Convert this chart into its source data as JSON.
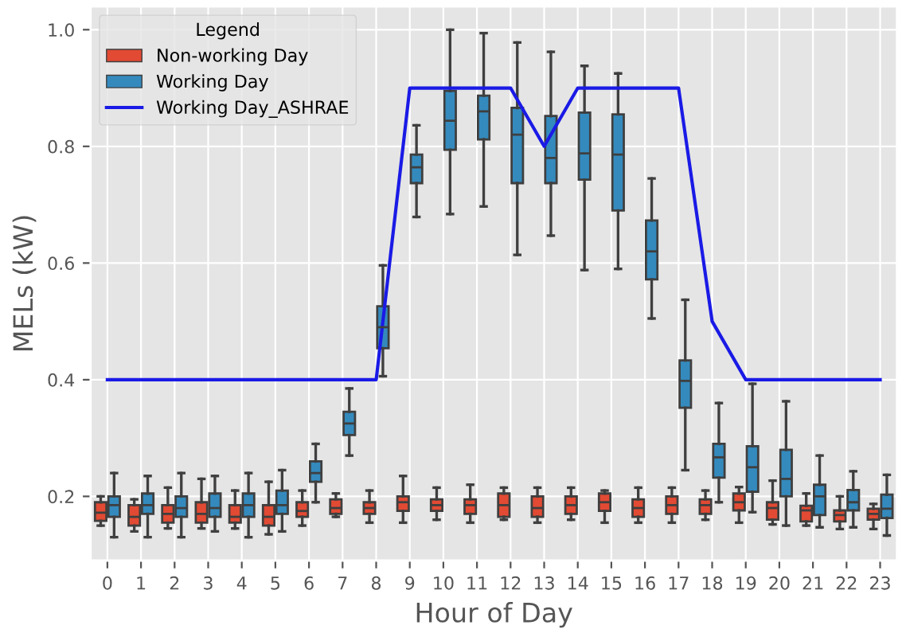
{
  "chart_data": {
    "type": "box",
    "xlabel": "Hour of Day",
    "ylabel": "MELs (kW)",
    "legend_title": "Legend",
    "legend": "top left",
    "grid": true,
    "marker": "none",
    "line_style": "solid",
    "categories": [
      "0",
      "1",
      "2",
      "3",
      "4",
      "5",
      "6",
      "7",
      "8",
      "9",
      "10",
      "11",
      "12",
      "13",
      "14",
      "15",
      "16",
      "17",
      "18",
      "19",
      "20",
      "21",
      "22",
      "23"
    ],
    "ylim": [
      0.09,
      1.04
    ],
    "yticks": [
      0.2,
      0.4,
      0.6,
      0.8,
      {
        "value": 1.0,
        "label": "1.0"
      }
    ],
    "series": [
      {
        "name": "Non-working Day",
        "color": "#e24a33",
        "boxes": [
          {
            "low": 0.15,
            "q1": 0.158,
            "median": 0.172,
            "q3": 0.19,
            "high": 0.2
          },
          {
            "low": 0.14,
            "q1": 0.15,
            "median": 0.165,
            "q3": 0.185,
            "high": 0.195
          },
          {
            "low": 0.145,
            "q1": 0.155,
            "median": 0.17,
            "q3": 0.185,
            "high": 0.215
          },
          {
            "low": 0.145,
            "q1": 0.155,
            "median": 0.17,
            "q3": 0.19,
            "high": 0.23
          },
          {
            "low": 0.145,
            "q1": 0.155,
            "median": 0.165,
            "q3": 0.185,
            "high": 0.21
          },
          {
            "low": 0.135,
            "q1": 0.15,
            "median": 0.165,
            "q3": 0.185,
            "high": 0.225
          },
          {
            "low": 0.15,
            "q1": 0.165,
            "median": 0.175,
            "q3": 0.19,
            "high": 0.21
          },
          {
            "low": 0.165,
            "q1": 0.17,
            "median": 0.18,
            "q3": 0.195,
            "high": 0.205
          },
          {
            "low": 0.155,
            "q1": 0.17,
            "median": 0.18,
            "q3": 0.19,
            "high": 0.21
          },
          {
            "low": 0.155,
            "q1": 0.175,
            "median": 0.19,
            "q3": 0.2,
            "high": 0.235
          },
          {
            "low": 0.16,
            "q1": 0.175,
            "median": 0.185,
            "q3": 0.195,
            "high": 0.215
          },
          {
            "low": 0.155,
            "q1": 0.17,
            "median": 0.185,
            "q3": 0.195,
            "high": 0.22
          },
          {
            "low": 0.16,
            "q1": 0.165,
            "median": 0.185,
            "q3": 0.205,
            "high": 0.215
          },
          {
            "low": 0.155,
            "q1": 0.165,
            "median": 0.18,
            "q3": 0.2,
            "high": 0.215
          },
          {
            "low": 0.16,
            "q1": 0.17,
            "median": 0.185,
            "q3": 0.2,
            "high": 0.215
          },
          {
            "low": 0.155,
            "q1": 0.175,
            "median": 0.19,
            "q3": 0.205,
            "high": 0.21
          },
          {
            "low": 0.155,
            "q1": 0.165,
            "median": 0.18,
            "q3": 0.195,
            "high": 0.215
          },
          {
            "low": 0.155,
            "q1": 0.17,
            "median": 0.185,
            "q3": 0.2,
            "high": 0.215
          },
          {
            "low": 0.16,
            "q1": 0.17,
            "median": 0.185,
            "q3": 0.195,
            "high": 0.21
          },
          {
            "low": 0.155,
            "q1": 0.176,
            "median": 0.19,
            "q3": 0.205,
            "high": 0.216
          },
          {
            "low": 0.152,
            "q1": 0.16,
            "median": 0.18,
            "q3": 0.19,
            "high": 0.227
          },
          {
            "low": 0.15,
            "q1": 0.157,
            "median": 0.176,
            "q3": 0.184,
            "high": 0.205
          },
          {
            "low": 0.144,
            "q1": 0.157,
            "median": 0.168,
            "q3": 0.176,
            "high": 0.2
          },
          {
            "low": 0.144,
            "q1": 0.16,
            "median": 0.17,
            "q3": 0.179,
            "high": 0.187
          }
        ]
      },
      {
        "name": "Working Day",
        "color": "#348abd",
        "boxes": [
          {
            "low": 0.13,
            "q1": 0.165,
            "median": 0.185,
            "q3": 0.2,
            "high": 0.24
          },
          {
            "low": 0.13,
            "q1": 0.17,
            "median": 0.185,
            "q3": 0.205,
            "high": 0.235
          },
          {
            "low": 0.13,
            "q1": 0.165,
            "median": 0.18,
            "q3": 0.2,
            "high": 0.24
          },
          {
            "low": 0.14,
            "q1": 0.165,
            "median": 0.18,
            "q3": 0.205,
            "high": 0.235
          },
          {
            "low": 0.13,
            "q1": 0.165,
            "median": 0.185,
            "q3": 0.205,
            "high": 0.24
          },
          {
            "low": 0.14,
            "q1": 0.17,
            "median": 0.185,
            "q3": 0.21,
            "high": 0.245
          },
          {
            "low": 0.19,
            "q1": 0.225,
            "median": 0.24,
            "q3": 0.26,
            "high": 0.29
          },
          {
            "low": 0.27,
            "q1": 0.305,
            "median": 0.325,
            "q3": 0.345,
            "high": 0.385
          },
          {
            "low": 0.406,
            "q1": 0.454,
            "median": 0.49,
            "q3": 0.526,
            "high": 0.596
          },
          {
            "low": 0.679,
            "q1": 0.737,
            "median": 0.764,
            "q3": 0.786,
            "high": 0.836
          },
          {
            "low": 0.684,
            "q1": 0.794,
            "median": 0.844,
            "q3": 0.895,
            "high": 1.0
          },
          {
            "low": 0.697,
            "q1": 0.812,
            "median": 0.86,
            "q3": 0.887,
            "high": 0.994
          },
          {
            "low": 0.614,
            "q1": 0.737,
            "median": 0.82,
            "q3": 0.866,
            "high": 0.978
          },
          {
            "low": 0.647,
            "q1": 0.737,
            "median": 0.78,
            "q3": 0.852,
            "high": 0.962
          },
          {
            "low": 0.588,
            "q1": 0.743,
            "median": 0.788,
            "q3": 0.858,
            "high": 0.938
          },
          {
            "low": 0.59,
            "q1": 0.69,
            "median": 0.786,
            "q3": 0.855,
            "high": 0.925
          },
          {
            "low": 0.505,
            "q1": 0.572,
            "median": 0.62,
            "q3": 0.673,
            "high": 0.745
          },
          {
            "low": 0.245,
            "q1": 0.352,
            "median": 0.398,
            "q3": 0.433,
            "high": 0.537
          },
          {
            "low": 0.19,
            "q1": 0.232,
            "median": 0.267,
            "q3": 0.29,
            "high": 0.36
          },
          {
            "low": 0.173,
            "q1": 0.208,
            "median": 0.25,
            "q3": 0.286,
            "high": 0.393
          },
          {
            "low": 0.15,
            "q1": 0.2,
            "median": 0.23,
            "q3": 0.28,
            "high": 0.363
          },
          {
            "low": 0.147,
            "q1": 0.168,
            "median": 0.2,
            "q3": 0.22,
            "high": 0.27
          },
          {
            "low": 0.147,
            "q1": 0.176,
            "median": 0.19,
            "q3": 0.211,
            "high": 0.243
          },
          {
            "low": 0.133,
            "q1": 0.163,
            "median": 0.179,
            "q3": 0.203,
            "high": 0.237
          }
        ]
      },
      {
        "name": "Working Day_ASHRAE",
        "type": "line",
        "color": "#1a1ae6",
        "values": [
          0.4,
          0.4,
          0.4,
          0.4,
          0.4,
          0.4,
          0.4,
          0.4,
          0.4,
          0.9,
          0.9,
          0.9,
          0.9,
          0.8,
          0.9,
          0.9,
          0.9,
          0.9,
          0.5,
          0.4,
          0.4,
          0.4,
          0.4,
          0.4
        ]
      }
    ]
  }
}
